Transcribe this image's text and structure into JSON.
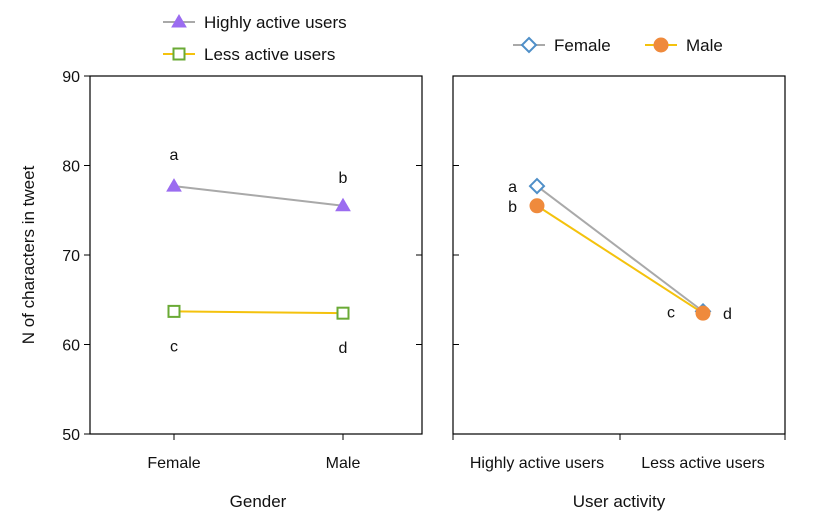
{
  "chart_data": [
    {
      "type": "line",
      "xlabel": "Gender",
      "ylabel": "N of characters in tweet",
      "categories": [
        "Female",
        "Male"
      ],
      "ylim": [
        50,
        90
      ],
      "yticks": [
        50,
        60,
        70,
        80,
        90
      ],
      "legend_position": "top",
      "series": [
        {
          "name": "Highly active users",
          "values": [
            77.7,
            75.5
          ],
          "color": "#a9a9a9",
          "marker": "triangle",
          "marker_color": "#9b6cf0",
          "labels": [
            "a",
            "b"
          ]
        },
        {
          "name": "Less active users",
          "values": [
            63.7,
            63.5
          ],
          "color": "#f4c20d",
          "marker": "square-open",
          "marker_color": "#6aaa35",
          "labels": [
            "c",
            "d"
          ]
        }
      ]
    },
    {
      "type": "line",
      "xlabel": "User activity",
      "ylabel": "",
      "categories": [
        "Highly active users",
        "Less active users"
      ],
      "ylim": [
        50,
        90
      ],
      "legend_position": "top",
      "series": [
        {
          "name": "Female",
          "values": [
            77.7,
            63.7
          ],
          "color": "#a9a9a9",
          "marker": "diamond-open",
          "marker_color": "#4f8fc8",
          "labels": [
            "a",
            "c"
          ]
        },
        {
          "name": "Male",
          "values": [
            75.5,
            63.5
          ],
          "color": "#f4c20d",
          "marker": "circle",
          "marker_color": "#ef8a3c",
          "labels": [
            "b",
            "d"
          ]
        }
      ]
    }
  ]
}
